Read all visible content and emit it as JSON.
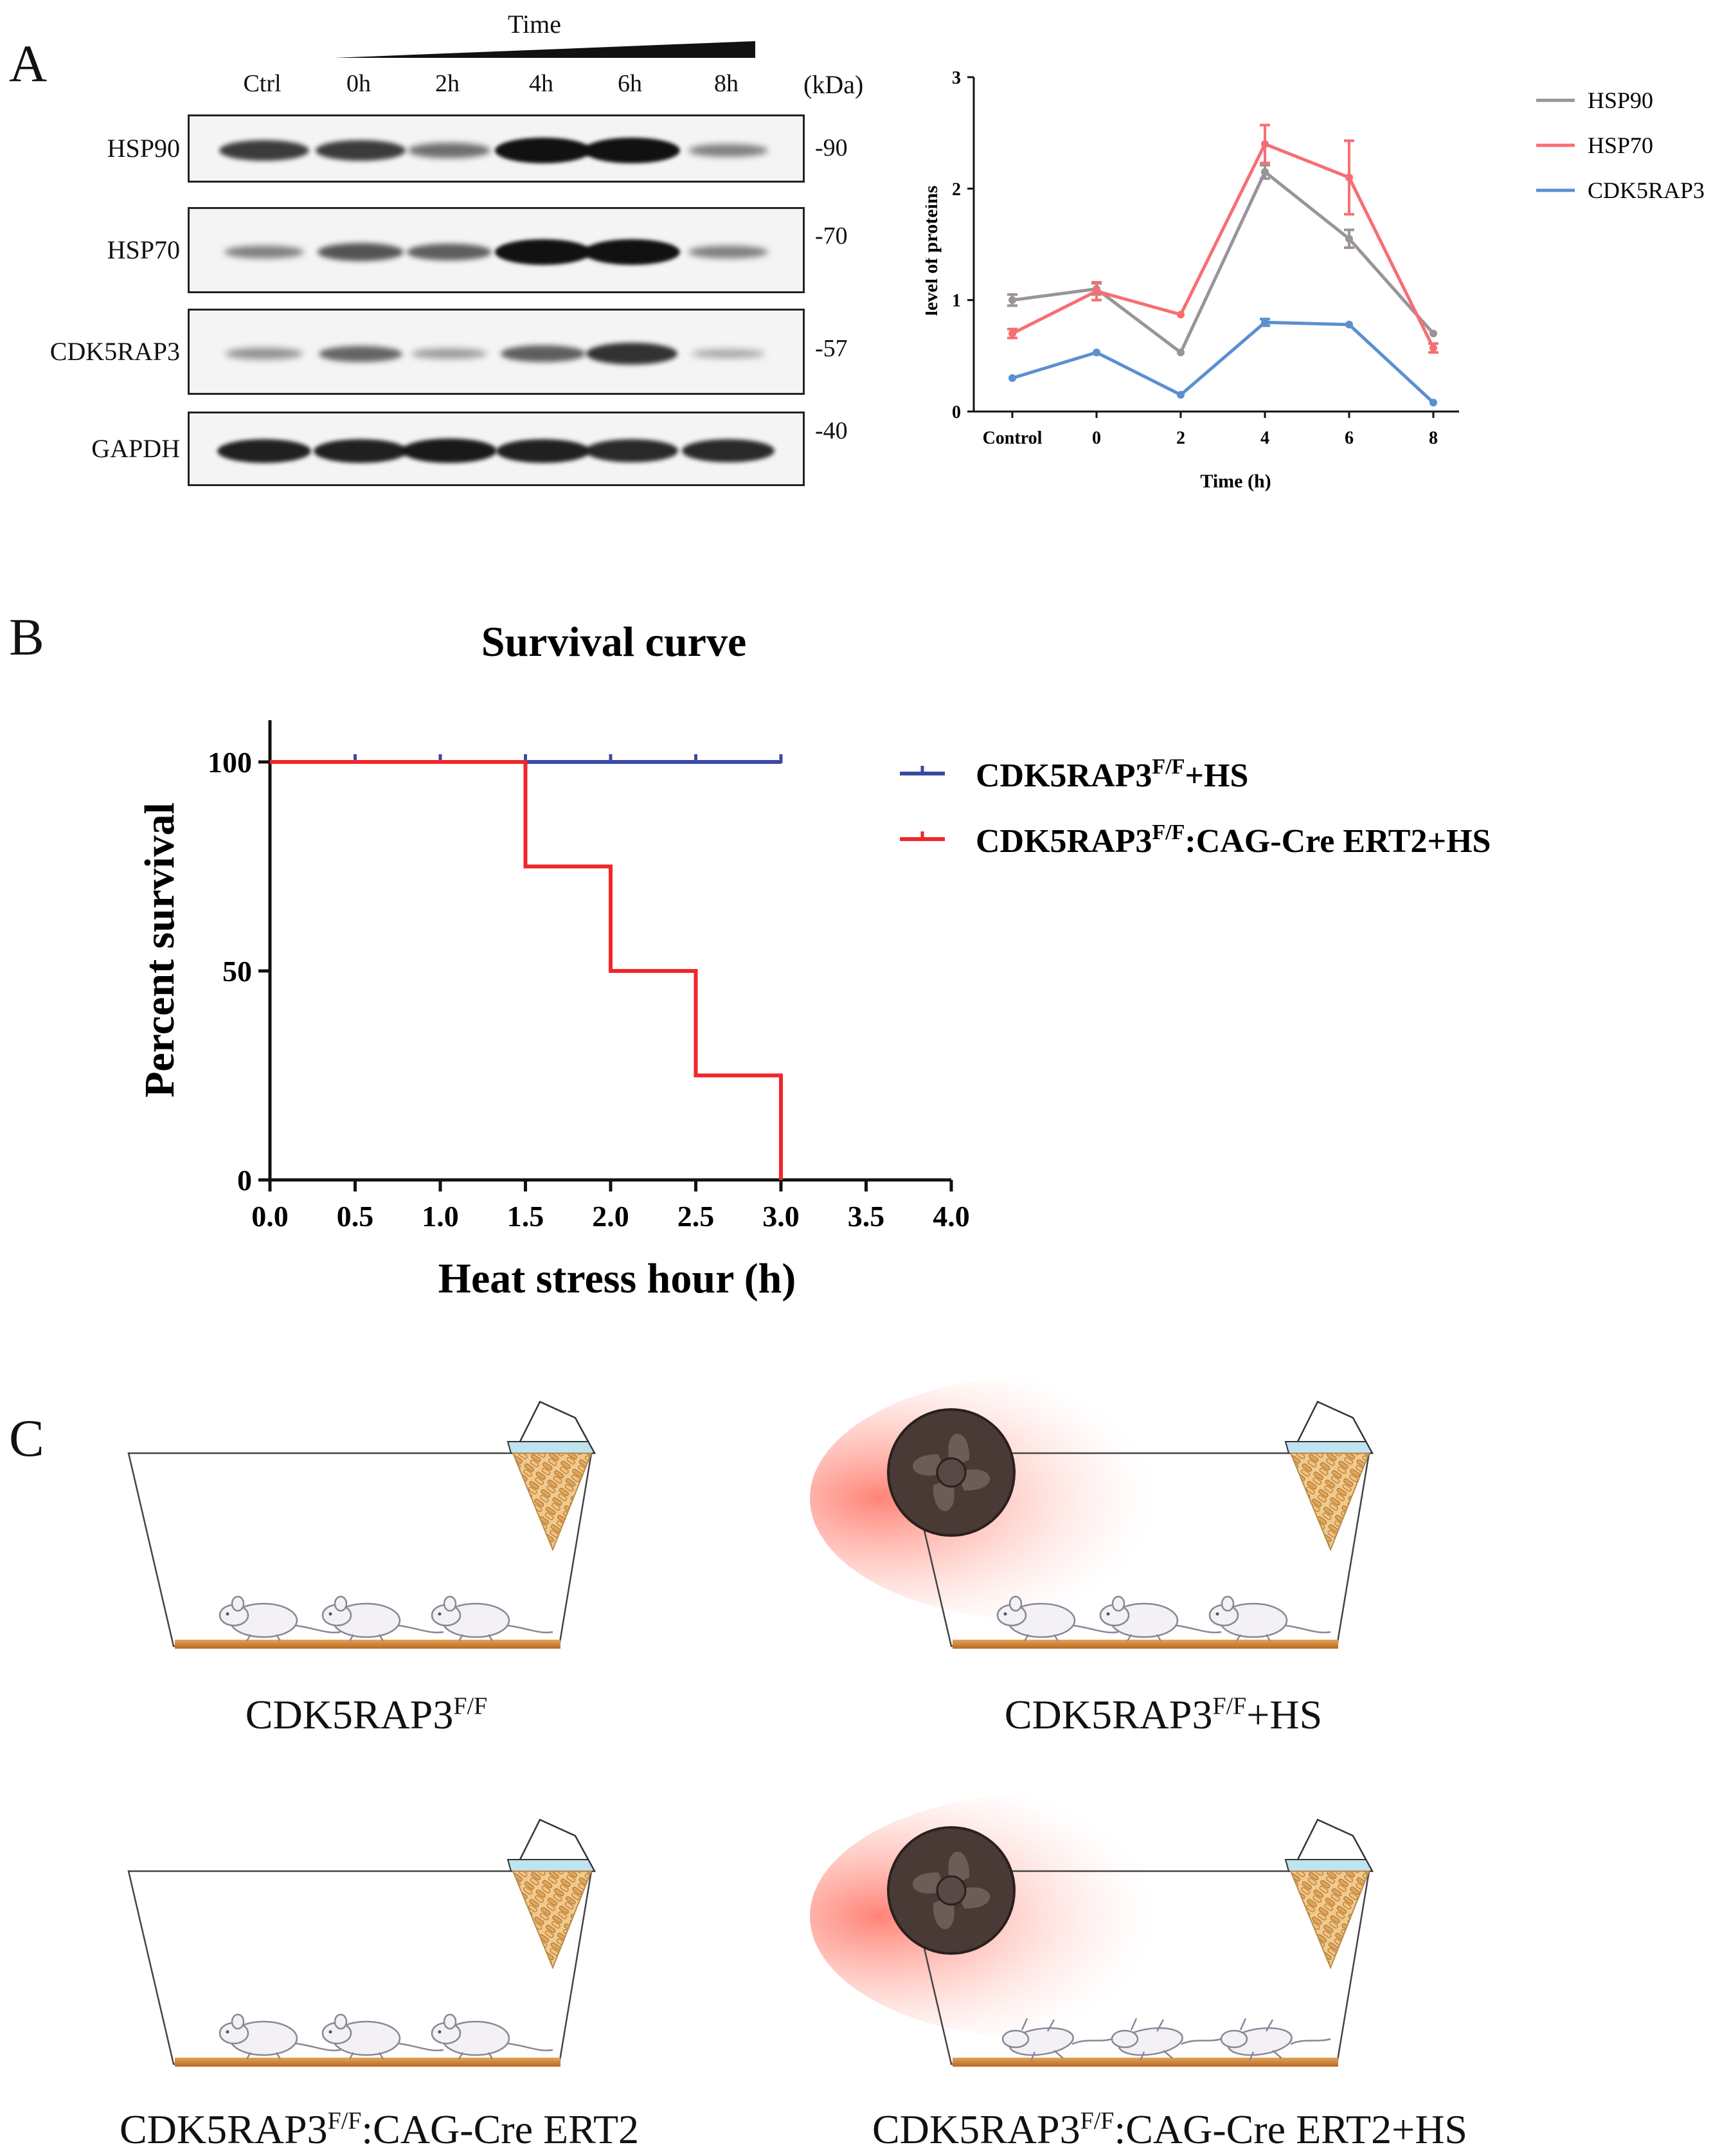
{
  "panel_a": {
    "letter": "A",
    "time_label": "Time",
    "lanes": [
      "Ctrl",
      "0h",
      "2h",
      "4h",
      "6h",
      "8h"
    ],
    "kda_header": "(kDa)",
    "blots": [
      {
        "protein": "HSP90",
        "kda": "-90",
        "intensity": [
          0.75,
          0.75,
          0.45,
          1.0,
          1.0,
          0.35
        ]
      },
      {
        "protein": "HSP70",
        "kda": "-70",
        "intensity": [
          0.35,
          0.6,
          0.55,
          1.0,
          1.0,
          0.35
        ]
      },
      {
        "protein": "CDK5RAP3",
        "kda": "-57",
        "intensity": [
          0.25,
          0.5,
          0.2,
          0.55,
          0.8,
          0.12
        ]
      },
      {
        "protein": "GAPDH",
        "kda": "-40",
        "intensity": [
          0.9,
          0.9,
          0.95,
          0.9,
          0.85,
          0.85
        ]
      }
    ]
  },
  "panel_b_letter": "B",
  "panel_c": {
    "letter": "C",
    "groups": [
      {
        "base": "CDK5RAP3",
        "sup": "F/F",
        "suffix": ""
      },
      {
        "base": "CDK5RAP3",
        "sup": "F/F",
        "suffix": "+HS"
      },
      {
        "base": "CDK5RAP3",
        "sup": "F/F",
        "suffix": ":CAG-Cre ERT2"
      },
      {
        "base": "CDK5RAP3",
        "sup": "F/F",
        "suffix": ":CAG-Cre ERT2+HS"
      }
    ]
  },
  "chart_data": [
    {
      "type": "line",
      "title": "",
      "xlabel": "Time (h)",
      "ylabel": "level of proteins",
      "categories": [
        "Control",
        "0",
        "2",
        "4",
        "6",
        "8"
      ],
      "ylim": [
        0,
        3
      ],
      "yticks": [
        "0",
        "1",
        "2",
        "3"
      ],
      "series": [
        {
          "name": "HSP90",
          "color": "#9a9398",
          "values": [
            1.0,
            1.1,
            0.53,
            2.15,
            1.55,
            0.7
          ],
          "errors": [
            0.05,
            0.05,
            0.0,
            0.06,
            0.08,
            0.0
          ]
        },
        {
          "name": "HSP70",
          "color": "#f76e72",
          "values": [
            0.7,
            1.08,
            0.87,
            2.4,
            2.1,
            0.57
          ],
          "errors": [
            0.04,
            0.08,
            0.0,
            0.17,
            0.33,
            0.04
          ]
        },
        {
          "name": "CDK5RAP3",
          "color": "#5b8fcf",
          "values": [
            0.3,
            0.53,
            0.15,
            0.8,
            0.78,
            0.08
          ],
          "errors": [
            0.0,
            0.0,
            0.0,
            0.03,
            0.0,
            0.0
          ]
        }
      ]
    },
    {
      "type": "line",
      "title": "Survival curve",
      "xlabel": "Heat stress hour (h)",
      "ylabel": "Percent survival",
      "xlim": [
        0,
        4
      ],
      "ylim": [
        0,
        110
      ],
      "xticks": [
        "0.0",
        "0.5",
        "1.0",
        "1.5",
        "2.0",
        "2.5",
        "3.0",
        "3.5",
        "4.0"
      ],
      "yticks": [
        "0",
        "50",
        "100"
      ],
      "series": [
        {
          "name": "CDK5RAP3",
          "sup": "F/F",
          "suffix": "+HS",
          "color": "#3a4aa0",
          "steps": [
            [
              0,
              100
            ],
            [
              3.0,
              100
            ]
          ],
          "censor": [
            0.5,
            1.0,
            1.5,
            2.0,
            2.5,
            3.0
          ]
        },
        {
          "name": "CDK5RAP3",
          "sup": "F/F",
          "suffix": ":CAG-Cre ERT2+HS",
          "color": "#f0262a",
          "steps": [
            [
              0,
              100
            ],
            [
              1.5,
              100
            ],
            [
              1.5,
              75
            ],
            [
              2.0,
              75
            ],
            [
              2.0,
              50
            ],
            [
              2.5,
              50
            ],
            [
              2.5,
              25
            ],
            [
              3.0,
              25
            ],
            [
              3.0,
              0
            ]
          ],
          "censor": []
        }
      ]
    }
  ]
}
